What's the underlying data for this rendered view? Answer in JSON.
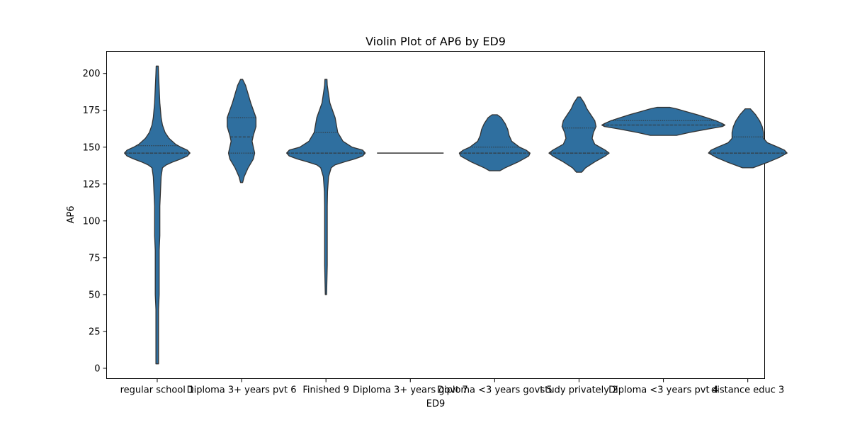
{
  "chart_data": {
    "type": "violin",
    "title": "Violin Plot of AP6 by ED9",
    "xlabel": "ED9",
    "ylabel": "AP6",
    "ylim": [
      -7,
      215
    ],
    "yticks": [
      0,
      25,
      50,
      75,
      100,
      125,
      150,
      175,
      200
    ],
    "grid": false,
    "fill_color": "#2f6f9f",
    "edge_color": "#333333",
    "categories": [
      "regular school 1",
      "Diploma 3+ years pvt 6",
      "Finished 9",
      "Diploma 3+ years govt 7",
      "Diploma <3 years govt 5",
      "study privately 2",
      "Diploma <3 years pvt 4",
      "distance educ 3"
    ],
    "violins": [
      {
        "category": "regular school 1",
        "profile": [
          [
            3,
            1
          ],
          [
            10,
            1
          ],
          [
            20,
            1
          ],
          [
            30,
            1
          ],
          [
            40,
            1
          ],
          [
            50,
            1.5
          ],
          [
            60,
            1.5
          ],
          [
            70,
            1.5
          ],
          [
            80,
            1.5
          ],
          [
            90,
            2
          ],
          [
            100,
            2
          ],
          [
            110,
            2
          ],
          [
            120,
            2.5
          ],
          [
            130,
            3
          ],
          [
            136,
            4
          ],
          [
            138,
            7
          ],
          [
            140,
            12
          ],
          [
            142,
            18
          ],
          [
            144,
            23
          ],
          [
            146,
            25
          ],
          [
            148,
            23
          ],
          [
            150,
            18
          ],
          [
            152,
            14
          ],
          [
            156,
            9
          ],
          [
            160,
            6
          ],
          [
            165,
            4
          ],
          [
            170,
            3
          ],
          [
            180,
            2
          ],
          [
            190,
            1.5
          ],
          [
            200,
            1
          ],
          [
            205,
            0.8
          ]
        ],
        "quartiles": [
          146,
          146,
          151
        ]
      },
      {
        "category": "Diploma 3+ years pvt 6",
        "profile": [
          [
            126,
            0.8
          ],
          [
            130,
            2
          ],
          [
            136,
            5
          ],
          [
            142,
            9
          ],
          [
            146,
            10
          ],
          [
            150,
            9
          ],
          [
            154,
            8
          ],
          [
            158,
            9
          ],
          [
            164,
            11
          ],
          [
            170,
            11
          ],
          [
            175,
            9
          ],
          [
            180,
            7
          ],
          [
            186,
            5
          ],
          [
            192,
            3
          ],
          [
            196,
            0.8
          ]
        ],
        "quartiles": [
          146,
          157,
          170
        ]
      },
      {
        "category": "Finished 9",
        "profile": [
          [
            50,
            0.5
          ],
          [
            70,
            1
          ],
          [
            90,
            1
          ],
          [
            110,
            1
          ],
          [
            120,
            1.2
          ],
          [
            130,
            2
          ],
          [
            136,
            4
          ],
          [
            138,
            7
          ],
          [
            140,
            14
          ],
          [
            142,
            22
          ],
          [
            144,
            28
          ],
          [
            146,
            30
          ],
          [
            148,
            28
          ],
          [
            150,
            20
          ],
          [
            154,
            13
          ],
          [
            160,
            9
          ],
          [
            165,
            8
          ],
          [
            170,
            7
          ],
          [
            175,
            5
          ],
          [
            180,
            3
          ],
          [
            186,
            2
          ],
          [
            192,
            1
          ],
          [
            196,
            0.8
          ]
        ],
        "quartiles": [
          146,
          146,
          160
        ]
      },
      {
        "category": "Diploma 3+ years govt 7",
        "profile": [],
        "quartiles": [
          146,
          146,
          146
        ],
        "single_value": 146
      },
      {
        "category": "Diploma <3 years govt 5",
        "profile": [
          [
            134,
            4
          ],
          [
            136,
            8
          ],
          [
            138,
            13
          ],
          [
            140,
            18
          ],
          [
            142,
            22
          ],
          [
            144,
            26
          ],
          [
            146,
            27
          ],
          [
            148,
            24
          ],
          [
            150,
            19
          ],
          [
            154,
            13
          ],
          [
            158,
            11
          ],
          [
            162,
            10
          ],
          [
            166,
            8
          ],
          [
            170,
            5
          ],
          [
            172,
            2
          ]
        ],
        "quartiles": [
          146,
          146,
          150
        ]
      },
      {
        "category": "study privately 2",
        "profile": [
          [
            133,
            2
          ],
          [
            136,
            5
          ],
          [
            140,
            12
          ],
          [
            144,
            20
          ],
          [
            146,
            23
          ],
          [
            148,
            20
          ],
          [
            152,
            12
          ],
          [
            156,
            10
          ],
          [
            160,
            11
          ],
          [
            164,
            13
          ],
          [
            168,
            12
          ],
          [
            172,
            9
          ],
          [
            176,
            6
          ],
          [
            180,
            4
          ],
          [
            184,
            1
          ]
        ],
        "quartiles": [
          146,
          146,
          163
        ]
      },
      {
        "category": "Diploma <3 years pvt 4",
        "profile": [
          [
            158,
            10
          ],
          [
            160,
            20
          ],
          [
            162,
            32
          ],
          [
            164,
            45
          ],
          [
            165,
            47
          ],
          [
            166,
            45
          ],
          [
            168,
            40
          ],
          [
            170,
            33
          ],
          [
            172,
            26
          ],
          [
            174,
            18
          ],
          [
            176,
            10
          ],
          [
            177,
            5
          ]
        ],
        "quartiles": [
          165,
          165,
          168
        ]
      },
      {
        "category": "distance educ 3",
        "profile": [
          [
            136,
            4
          ],
          [
            138,
            10
          ],
          [
            140,
            16
          ],
          [
            143,
            24
          ],
          [
            146,
            30
          ],
          [
            148,
            28
          ],
          [
            150,
            23
          ],
          [
            153,
            15
          ],
          [
            156,
            12
          ],
          [
            160,
            12
          ],
          [
            164,
            11
          ],
          [
            168,
            9
          ],
          [
            172,
            6
          ],
          [
            176,
            2
          ]
        ],
        "quartiles": [
          146,
          146,
          157
        ]
      }
    ]
  }
}
